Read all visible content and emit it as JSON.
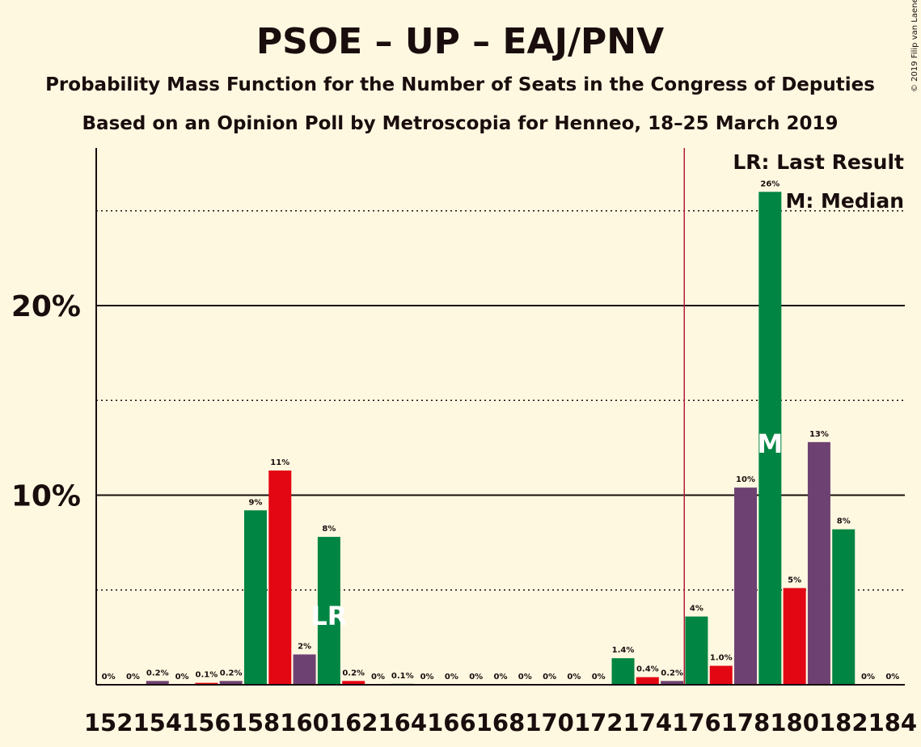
{
  "chart_data": {
    "type": "bar",
    "title": "PSOE – UP – EAJ/PNV",
    "subtitle1": "Probability Mass Function for the Number of Seats in the Congress of Deputies",
    "subtitle2": "Based on an Opinion Poll by Metroscopia for Henneo, 18–25 March 2019",
    "copyright": "© 2019 Filip van Laenen",
    "legend": {
      "lr": "LR: Last Result",
      "m": "M: Median",
      "position": "top-right"
    },
    "ylim": [
      0,
      28
    ],
    "yticks": [
      {
        "value": 10,
        "label": "10%"
      },
      {
        "value": 20,
        "label": "20%"
      }
    ],
    "minor_gridlines": [
      5,
      15,
      25
    ],
    "x": [
      152,
      153,
      154,
      155,
      156,
      157,
      158,
      159,
      160,
      161,
      162,
      163,
      164,
      165,
      166,
      167,
      168,
      169,
      170,
      171,
      172,
      173,
      174,
      175,
      176,
      177,
      178,
      179,
      180,
      181,
      182,
      183,
      184
    ],
    "xtick_labels": [
      "152",
      "154",
      "156",
      "158",
      "160",
      "162",
      "164",
      "166",
      "168",
      "170",
      "172",
      "174",
      "176",
      "178",
      "180",
      "182",
      "184"
    ],
    "values": [
      0,
      0,
      0.2,
      0,
      0.1,
      0.2,
      9.2,
      11.3,
      1.6,
      7.8,
      0.2,
      0,
      0.05,
      0,
      0,
      0,
      0,
      0,
      0,
      0,
      0,
      1.4,
      0.4,
      0.2,
      3.6,
      1.0,
      10.4,
      26.0,
      5.1,
      12.8,
      8.2,
      0,
      0
    ],
    "labels": [
      "0%",
      "0%",
      "0.2%",
      "0%",
      "0.1%",
      "0.2%",
      "9%",
      "11%",
      "2%",
      "8%",
      "0.2%",
      "0%",
      "0.1%",
      "0%",
      "0%",
      "0%",
      "0%",
      "0%",
      "0%",
      "0%",
      "0%",
      "1.4%",
      "0.4%",
      "0.2%",
      "4%",
      "1.0%",
      "10%",
      "26%",
      "5%",
      "13%",
      "8%",
      "0%",
      "0%"
    ],
    "colors": {
      "PSOE": "#E30613",
      "UP": "#6E4173",
      "EAJ/PNV": "#008542"
    },
    "bar_party": [
      "UP",
      "EAJ/PNV",
      "UP",
      "EAJ/PNV",
      "PSOE",
      "UP",
      "EAJ/PNV",
      "PSOE",
      "UP",
      "EAJ/PNV",
      "PSOE",
      "UP",
      "EAJ/PNV",
      "PSOE",
      "UP",
      "EAJ/PNV",
      "PSOE",
      "UP",
      "EAJ/PNV",
      "PSOE",
      "UP",
      "EAJ/PNV",
      "PSOE",
      "UP",
      "EAJ/PNV",
      "PSOE",
      "UP",
      "EAJ/PNV",
      "PSOE",
      "UP",
      "EAJ/PNV",
      "PSOE",
      "UP"
    ],
    "last_result_seat": 161,
    "last_result_label": "LR",
    "median_seat": 179,
    "median_label": "M",
    "majority_line_seat": 175.5,
    "grid": true
  }
}
